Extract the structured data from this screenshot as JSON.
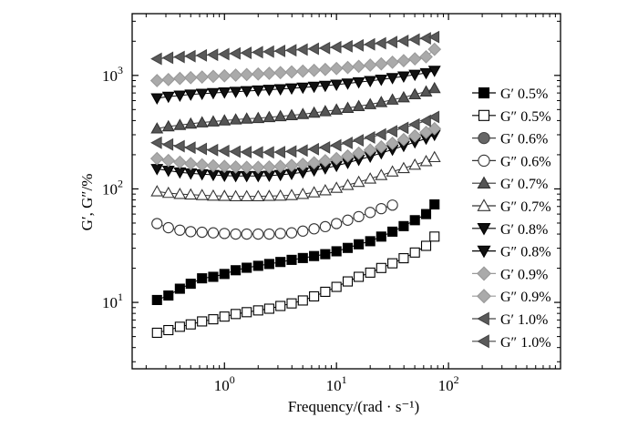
{
  "chart_data": {
    "type": "scatter",
    "title": "",
    "xlabel": "Frequency/(rad · s⁻¹)",
    "ylabel": "G′, G″/%",
    "xscale": "log",
    "yscale": "log",
    "xlim": [
      0.15,
      1000
    ],
    "ylim": [
      2.6,
      3500
    ],
    "grid": false,
    "legend_position": "right",
    "x_ticks": [
      {
        "value": 1,
        "label": "10",
        "exp": "0"
      },
      {
        "value": 10,
        "label": "10",
        "exp": "1"
      },
      {
        "value": 100,
        "label": "10",
        "exp": "2"
      }
    ],
    "y_ticks": [
      {
        "value": 10,
        "label": "10",
        "exp": "1"
      },
      {
        "value": 100,
        "label": "10",
        "exp": "2"
      },
      {
        "value": 1000,
        "label": "10",
        "exp": "3"
      }
    ],
    "x": [
      0.25,
      0.316,
      0.4,
      0.5,
      0.631,
      0.794,
      1.0,
      1.26,
      1.58,
      2.0,
      2.51,
      3.16,
      3.98,
      5.01,
      6.31,
      7.94,
      10.0,
      12.6,
      15.8,
      20.0,
      25.1,
      31.6,
      39.8,
      50.1,
      63.1,
      75.0
    ],
    "series": [
      {
        "name": "G′ 0.5%",
        "marker": "square",
        "fill": "#000000",
        "stroke": "#000000",
        "values": [
          10.5,
          11.5,
          13.2,
          14.6,
          16.3,
          16.8,
          17.8,
          19.2,
          20.2,
          21.0,
          21.8,
          22.7,
          23.7,
          24.6,
          25.6,
          26.6,
          28.2,
          30.2,
          32.5,
          34.6,
          38.0,
          42.0,
          47.0,
          53.0,
          60.0,
          73.0
        ]
      },
      {
        "name": "G″ 0.5%",
        "marker": "square",
        "fill": "#ffffff",
        "stroke": "#000000",
        "values": [
          5.4,
          5.7,
          6.1,
          6.4,
          6.8,
          7.1,
          7.5,
          7.9,
          8.2,
          8.5,
          8.8,
          9.3,
          9.8,
          10.4,
          11.3,
          12.4,
          13.7,
          15.3,
          16.8,
          18.3,
          20.1,
          22.1,
          24.5,
          27.5,
          31.5,
          38.0
        ]
      },
      {
        "name": "G′ 0.6%",
        "marker": "circle",
        "fill": "#666666",
        "stroke": "#444444",
        "values": []
      },
      {
        "name": "G″ 0.6%",
        "marker": "circle",
        "fill": "#ffffff",
        "stroke": "#333333",
        "values": [
          49.5,
          45.5,
          43.3,
          42.0,
          41.5,
          41.0,
          40.5,
          40.0,
          40.0,
          40.0,
          40.0,
          40.5,
          41.0,
          42.5,
          44.5,
          46.5,
          49.5,
          53.0,
          57.0,
          62.0,
          67.0,
          72.0,
          null,
          null,
          null,
          null
        ]
      },
      {
        "name": "G′ 0.7%",
        "marker": "triangle-up",
        "fill": "#555555",
        "stroke": "#333333",
        "values": [
          340,
          355,
          365,
          375,
          385,
          392,
          400,
          408,
          415,
          420,
          428,
          436,
          445,
          455,
          468,
          482,
          498,
          516,
          535,
          556,
          580,
          610,
          640,
          680,
          720,
          770
        ]
      },
      {
        "name": "G″ 0.7%",
        "marker": "triangle-up",
        "fill": "#ffffff",
        "stroke": "#333333",
        "values": [
          95,
          92,
          90,
          89,
          88,
          87,
          86.5,
          86,
          86,
          86,
          86.5,
          87,
          88,
          90,
          93,
          97,
          102,
          108,
          115,
          123,
          132,
          142,
          152,
          163,
          175,
          190
        ]
      },
      {
        "name": "G′ 0.8%",
        "marker": "triangle-down",
        "fill": "#111111",
        "stroke": "#000000",
        "values": [
          630,
          650,
          665,
          680,
          690,
          700,
          710,
          718,
          728,
          738,
          748,
          758,
          770,
          782,
          796,
          812,
          830,
          850,
          872,
          895,
          920,
          950,
          980,
          1015,
          1050,
          1100
        ]
      },
      {
        "name": "G″ 0.8%",
        "marker": "triangle-down",
        "fill": "#111111",
        "stroke": "#000000",
        "values": [
          150,
          145,
          140,
          137,
          135,
          133,
          131,
          130,
          130,
          130,
          131,
          133,
          136,
          140,
          146,
          152,
          160,
          170,
          181,
          193,
          207,
          222,
          240,
          258,
          278,
          300
        ]
      },
      {
        "name": "G′ 0.9%",
        "marker": "diamond",
        "fill": "#aaaaaa",
        "stroke": "#999999",
        "values": [
          900,
          920,
          940,
          955,
          968,
          980,
          992,
          1005,
          1018,
          1030,
          1043,
          1058,
          1073,
          1090,
          1108,
          1128,
          1150,
          1175,
          1202,
          1232,
          1265,
          1305,
          1350,
          1400,
          1460,
          1700
        ]
      },
      {
        "name": "G″ 0.9%",
        "marker": "diamond",
        "fill": "#aaaaaa",
        "stroke": "#999999",
        "values": [
          185,
          178,
          172,
          167,
          163,
          160,
          158,
          156,
          155,
          155,
          156,
          158,
          161,
          165,
          170,
          177,
          185,
          195,
          207,
          220,
          235,
          252,
          272,
          293,
          315,
          340
        ]
      },
      {
        "name": "G′ 1.0%",
        "marker": "triangle-left",
        "fill": "#5a5a5a",
        "stroke": "#444444",
        "values": [
          1400,
          1430,
          1455,
          1478,
          1500,
          1520,
          1540,
          1560,
          1580,
          1600,
          1620,
          1642,
          1665,
          1690,
          1715,
          1742,
          1772,
          1805,
          1840,
          1878,
          1920,
          1965,
          2015,
          2070,
          2125,
          2180
        ]
      },
      {
        "name": "G″ 1.0%",
        "marker": "triangle-left",
        "fill": "#5a5a5a",
        "stroke": "#444444",
        "values": [
          255,
          246,
          238,
          231,
          225,
          220,
          216,
          213,
          211,
          210,
          210,
          211,
          214,
          218,
          224,
          232,
          242,
          254,
          268,
          284,
          302,
          322,
          345,
          370,
          398,
          430
        ]
      }
    ]
  }
}
